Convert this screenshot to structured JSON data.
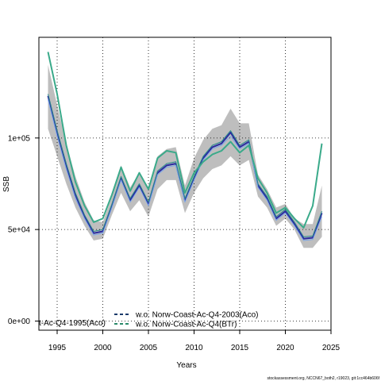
{
  "chart_data": {
    "type": "line",
    "xlabel": "Years",
    "ylabel": "SSB",
    "xlim": [
      1993,
      2025
    ],
    "ylim": [
      -5000,
      155000
    ],
    "x_ticks": [
      {
        "value": 1995,
        "label": "1995"
      },
      {
        "value": 2000,
        "label": "2000"
      },
      {
        "value": 2005,
        "label": "2005"
      },
      {
        "value": 2010,
        "label": "2010"
      },
      {
        "value": 2015,
        "label": "2015"
      },
      {
        "value": 2020,
        "label": "2020"
      },
      {
        "value": 2025,
        "label": "2025"
      }
    ],
    "y_ticks": [
      {
        "value": 0,
        "label": "0e+00"
      },
      {
        "value": 50000,
        "label": "5e+04"
      },
      {
        "value": 100000,
        "label": "1e+05"
      }
    ],
    "grid": true,
    "confidence_band": {
      "color": "#bebebe",
      "x": [
        1994,
        1995,
        1996,
        1997,
        1998,
        1999,
        2000,
        2001,
        2002,
        2003,
        2004,
        2005,
        2006,
        2007,
        2008,
        2009,
        2010,
        2011,
        2012,
        2013,
        2014,
        2015,
        2016,
        2017,
        2018,
        2019,
        2020,
        2021,
        2022,
        2023,
        2024
      ],
      "lower": [
        105000,
        90000,
        75000,
        62000,
        52000,
        44000,
        45000,
        58000,
        70000,
        60000,
        66000,
        57000,
        72000,
        77000,
        77000,
        59000,
        70000,
        78000,
        83000,
        85000,
        90000,
        85000,
        88000,
        68000,
        62000,
        52000,
        56000,
        50000,
        40000,
        40000,
        46000
      ],
      "upper": [
        140000,
        118000,
        97000,
        79000,
        65000,
        55000,
        54000,
        68000,
        85000,
        73000,
        81000,
        73000,
        90000,
        94000,
        95000,
        74000,
        89000,
        99000,
        105000,
        107000,
        116000,
        108000,
        108000,
        80000,
        72000,
        62000,
        64000,
        56000,
        53000,
        53000,
        74000
      ]
    },
    "series": [
      {
        "name": "",
        "color": "#2a2aa0",
        "width": 2,
        "x": [
          1994,
          1995,
          1996,
          1997,
          1998,
          1999,
          2000,
          2001,
          2002,
          2003,
          2004,
          2005,
          2006,
          2007,
          2008,
          2009,
          2010,
          2011,
          2012,
          2013,
          2014,
          2015,
          2016,
          2017,
          2018,
          2019,
          2020,
          2021,
          2022,
          2023,
          2024
        ],
        "y": [
          123000,
          103000,
          85000,
          69000,
          57000,
          48000,
          49000,
          63000,
          78000,
          66000,
          74000,
          64000,
          81000,
          85000,
          86000,
          66000,
          78000,
          89000,
          95000,
          97000,
          103000,
          95000,
          98000,
          74000,
          67000,
          56000,
          60000,
          53000,
          45000,
          45500,
          59000
        ]
      },
      {
        "name": "t-Ac-Q4-1995(Aco)",
        "color": "#7aa6e8",
        "width": 1,
        "x": [
          1994,
          1995,
          1996,
          1997,
          1998,
          1999,
          2000,
          2001,
          2002,
          2003,
          2004,
          2005,
          2006,
          2007,
          2008,
          2009,
          2010,
          2011,
          2012,
          2013,
          2014,
          2015,
          2016,
          2017,
          2018,
          2019,
          2020,
          2021,
          2022,
          2023,
          2024
        ],
        "y": [
          121000,
          101000,
          83000,
          67000,
          56000,
          47000,
          48000,
          62000,
          77000,
          65000,
          73000,
          63000,
          80000,
          84000,
          85000,
          65000,
          77000,
          88000,
          94000,
          96000,
          101000,
          94000,
          97000,
          73000,
          66000,
          55000,
          59000,
          52000,
          44000,
          44500,
          57000
        ]
      },
      {
        "name": "w.o. Norw-Coast-Ac-Q4-2003(Aco)",
        "color": "#2a8a8a",
        "width": 1,
        "x": [
          1994,
          1995,
          1996,
          1997,
          1998,
          1999,
          2000,
          2001,
          2002,
          2003,
          2004,
          2005,
          2006,
          2007,
          2008,
          2009,
          2010,
          2011,
          2012,
          2013,
          2014,
          2015,
          2016,
          2017,
          2018,
          2019,
          2020,
          2021,
          2022,
          2023,
          2024
        ],
        "y": [
          124000,
          104000,
          86000,
          70000,
          58000,
          49000,
          50000,
          64000,
          79000,
          67000,
          75000,
          65000,
          82000,
          86000,
          87000,
          67000,
          79000,
          90000,
          96000,
          98000,
          104000,
          96000,
          99000,
          75000,
          68000,
          57000,
          61000,
          54000,
          46000,
          46500,
          60000
        ]
      },
      {
        "name": "w.o. Norw-Coast-Ac-Q4(BTr)",
        "color": "#3aaa8a",
        "width": 2,
        "x": [
          1994,
          1995,
          1996,
          1997,
          1998,
          1999,
          2000,
          2001,
          2002,
          2003,
          2004,
          2005,
          2006,
          2007,
          2008,
          2009,
          2010,
          2011,
          2012,
          2013,
          2014,
          2015,
          2016,
          2017,
          2018,
          2019,
          2020,
          2021,
          2022,
          2023,
          2024
        ],
        "y": [
          147000,
          124000,
          96000,
          76000,
          63000,
          54000,
          56000,
          69000,
          84000,
          71000,
          81000,
          72000,
          89000,
          93000,
          92000,
          70000,
          81000,
          87000,
          91000,
          93000,
          98000,
          92000,
          96000,
          78000,
          70000,
          59000,
          62000,
          56000,
          51000,
          63000,
          97000
        ]
      }
    ],
    "legend_entries": [
      {
        "label": "t-Ac-Q4-1995(Aco)",
        "color": "#7aa6e8",
        "style": "dashed",
        "show_line": false
      },
      {
        "label": "w.o. Norw-Coast-Ac-Q4-2003(Aco)",
        "color": "#1a3a6a",
        "style": "dashed",
        "show_line": true
      },
      {
        "label": "w.o. Norw-Coast-Ac-Q4(BTr)",
        "color": "#2a8a6a",
        "style": "dashed",
        "show_line": true
      }
    ],
    "footer": "stockassessment.org, NCCN67_both2, r19023, git:1cc464b606f"
  }
}
